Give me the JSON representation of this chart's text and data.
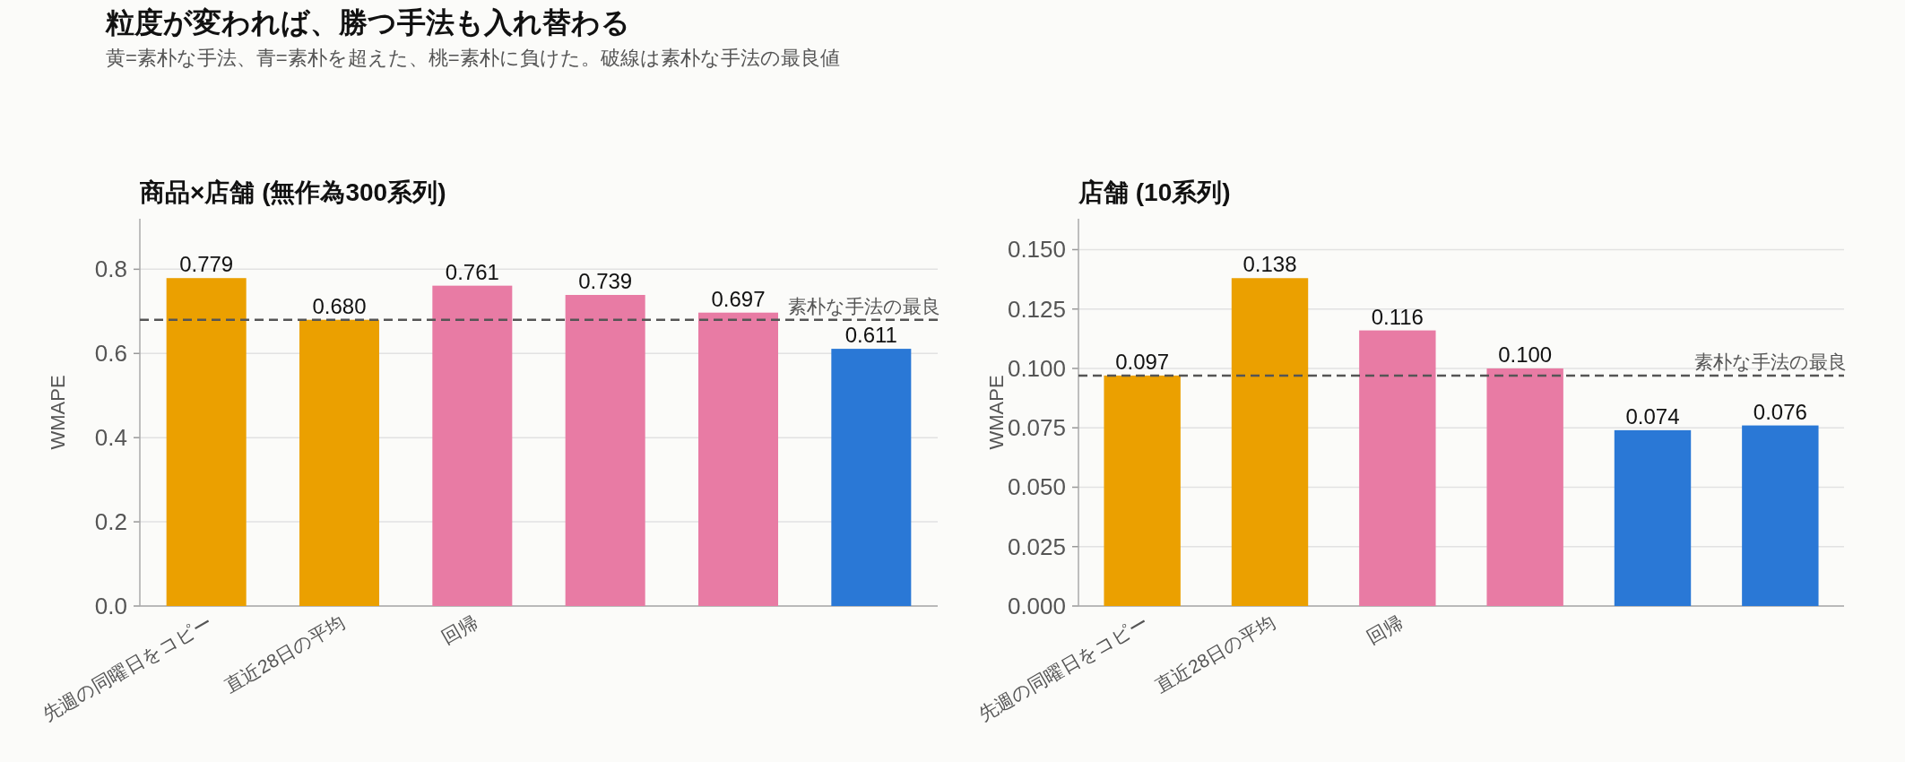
{
  "chart_data": [
    {
      "type": "other",
      "title": "粒度が変われば、勝つ手法も入れ替わる",
      "subtitle": "黄=素朴な手法、青=素朴を超えた、桃=素朴に負けた。破線は素朴な手法の最良値"
    },
    {
      "type": "bar",
      "title": "商品×店舗 (無作為300系列)",
      "ylabel": "WMAPE",
      "categories": [
        "先週の同曜日をコピー",
        "直近28日の平均",
        "回帰",
        null,
        null,
        null
      ],
      "values": [
        0.779,
        0.68,
        0.761,
        0.739,
        0.697,
        0.611
      ],
      "colors": [
        "#eba000",
        "#eba000",
        "#e87ba4",
        "#e87ba4",
        "#e87ba4",
        "#2a78d6"
      ],
      "value_labels": [
        "0.779",
        "0.680",
        "0.761",
        "0.739",
        "0.697",
        "0.611"
      ],
      "ylim": [
        0,
        0.92
      ],
      "yticks": [
        {
          "value": 0,
          "label": "0.0"
        },
        {
          "value": 0.2,
          "label": "0.2"
        },
        {
          "value": 0.4,
          "label": "0.4"
        },
        {
          "value": 0.6,
          "label": "0.6"
        },
        {
          "value": 0.8,
          "label": "0.8"
        }
      ],
      "grid": "y",
      "ref_lines": [
        {
          "axis": "y",
          "value": 0.68,
          "label": "素朴な手法の最良",
          "color": "#555555",
          "line_style": "dashed"
        }
      ]
    },
    {
      "type": "bar",
      "title": "店舗 (10系列)",
      "ylabel": "WMAPE",
      "categories": [
        "先週の同曜日をコピー",
        "直近28日の平均",
        "回帰",
        null,
        null,
        null
      ],
      "values": [
        0.097,
        0.138,
        0.116,
        0.1,
        0.074,
        0.076
      ],
      "colors": [
        "#eba000",
        "#eba000",
        "#e87ba4",
        "#e87ba4",
        "#2a78d6",
        "#2a78d6"
      ],
      "value_labels": [
        "0.097",
        "0.138",
        "0.116",
        "0.100",
        "0.074",
        "0.076"
      ],
      "ylim": [
        0,
        0.163
      ],
      "yticks": [
        {
          "value": 0,
          "label": "0.000"
        },
        {
          "value": 0.025,
          "label": "0.025"
        },
        {
          "value": 0.05,
          "label": "0.050"
        },
        {
          "value": 0.075,
          "label": "0.075"
        },
        {
          "value": 0.1,
          "label": "0.100"
        },
        {
          "value": 0.125,
          "label": "0.125"
        },
        {
          "value": 0.15,
          "label": "0.150"
        }
      ],
      "grid": "y",
      "ref_lines": [
        {
          "axis": "y",
          "value": 0.097,
          "label": "素朴な手法の最良",
          "color": "#555555",
          "line_style": "dashed"
        }
      ]
    }
  ]
}
